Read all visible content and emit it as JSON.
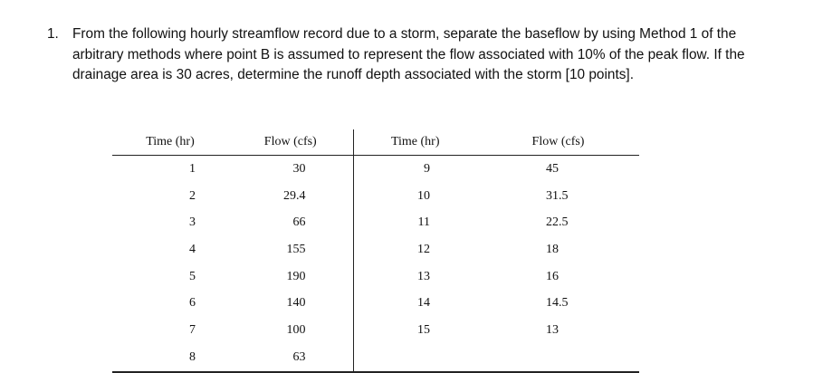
{
  "question": {
    "number": "1.",
    "text": "From the following hourly streamflow record due to a storm, separate the baseflow by using Method 1 of the arbitrary methods where point B is assumed to represent the flow associated with 10% of the peak flow. If the drainage area is 30 acres, determine the runoff depth associated with the storm [10 points]."
  },
  "table": {
    "headers": [
      "Time (hr)",
      "Flow (cfs)",
      "Time (hr)",
      "Flow (cfs)"
    ],
    "rows": [
      [
        "1",
        "30",
        "9",
        "45"
      ],
      [
        "2",
        "29.4",
        "10",
        "31.5"
      ],
      [
        "3",
        "66",
        "11",
        "22.5"
      ],
      [
        "4",
        "155",
        "12",
        "18"
      ],
      [
        "5",
        "190",
        "13",
        "16"
      ],
      [
        "6",
        "140",
        "14",
        "14.5"
      ],
      [
        "7",
        "100",
        "15",
        "13"
      ],
      [
        "8",
        "63",
        "",
        ""
      ]
    ]
  }
}
